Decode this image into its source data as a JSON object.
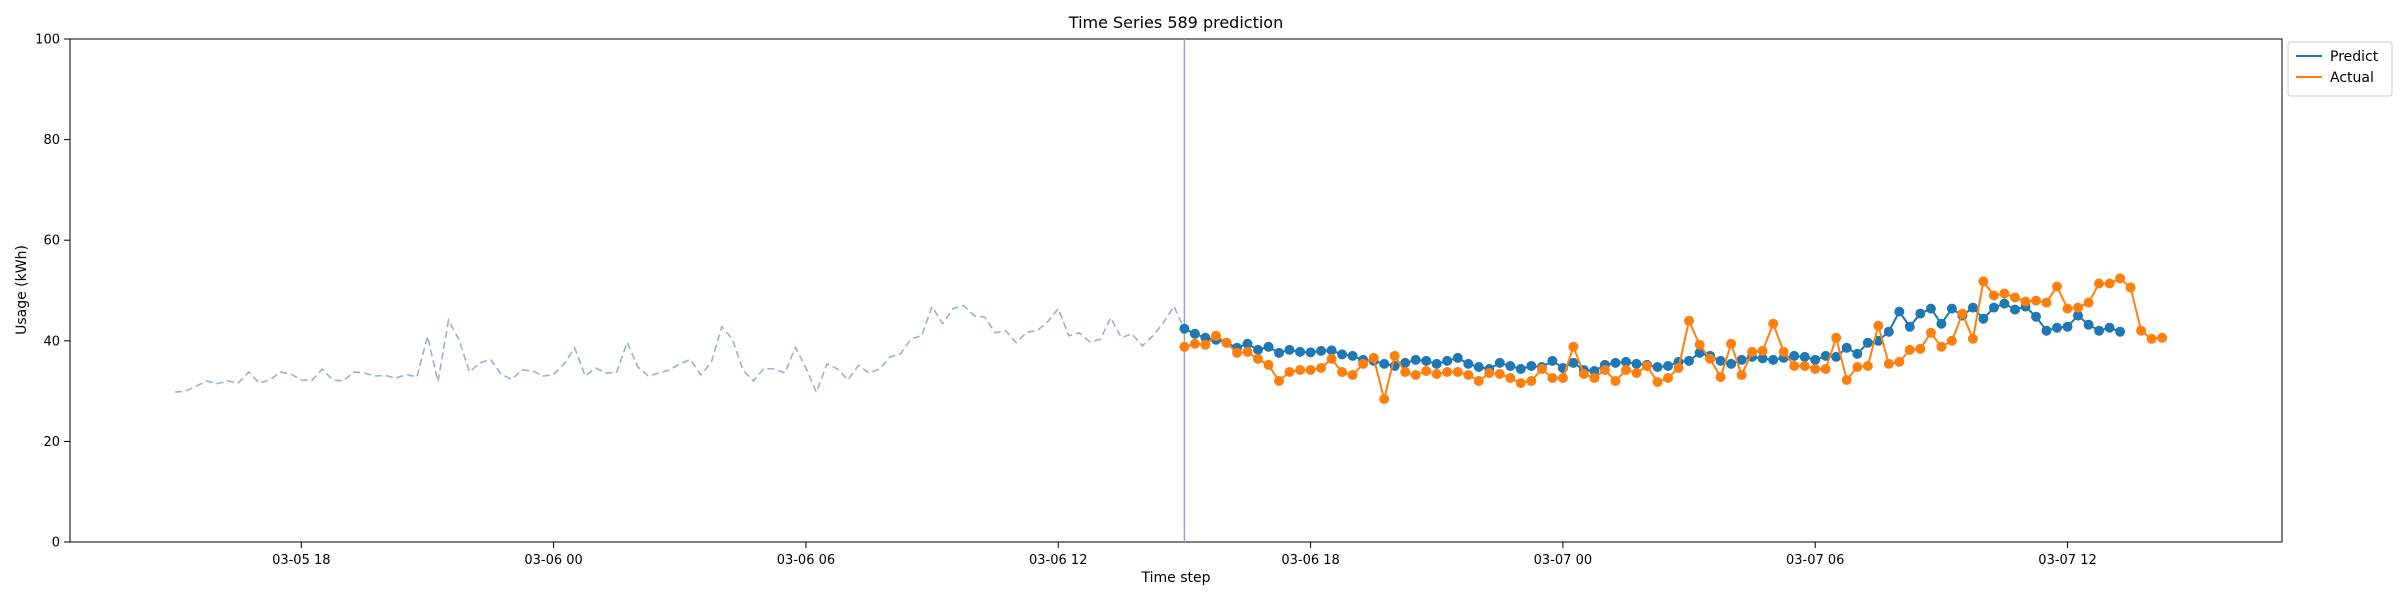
{
  "chart_data": {
    "type": "line",
    "title": "Time Series 589 prediction",
    "xlabel": "Time step",
    "ylabel": "Usage (kWh)",
    "ylim": [
      0,
      100
    ],
    "yticks": [
      "0",
      "20",
      "40",
      "60",
      "80",
      "100"
    ],
    "xlim_hours": [
      -11.5,
      41.1
    ],
    "xticks": [
      {
        "label": "03-05 18",
        "hour": -6
      },
      {
        "label": "03-06 00",
        "hour": 0
      },
      {
        "label": "03-06 06",
        "hour": 6
      },
      {
        "label": "03-06 12",
        "hour": 12
      },
      {
        "label": "03-06 18",
        "hour": 18
      },
      {
        "label": "03-07 00",
        "hour": 24
      },
      {
        "label": "03-07 06",
        "hour": 30
      },
      {
        "label": "03-07 12",
        "hour": 36
      }
    ],
    "history": {
      "start_hour": -9.0,
      "step_hours": 0.25,
      "values": [
        29.8,
        30.0,
        31.0,
        32.0,
        31.5,
        32.0,
        31.6,
        33.8,
        31.6,
        32.2,
        33.8,
        33.4,
        32.2,
        32.1,
        34.4,
        32.2,
        32.0,
        33.8,
        33.6,
        33.0,
        33.1,
        32.6,
        33.3,
        32.8,
        40.9,
        31.9,
        44.1,
        40.2,
        33.8,
        35.6,
        36.3,
        33.4,
        32.3,
        34.2,
        34.0,
        33.0,
        33.3,
        35.4,
        38.6,
        33.0,
        34.6,
        33.6,
        33.7,
        39.7,
        34.8,
        33.0,
        33.6,
        34.2,
        35.4,
        36.3,
        33.2,
        35.7,
        42.8,
        40.4,
        34.2,
        32.0,
        34.5,
        34.4,
        33.6,
        38.7,
        34.6,
        29.8,
        35.4,
        34.4,
        32.2,
        35.1,
        33.6,
        34.4,
        36.8,
        37.4,
        40.4,
        41.0,
        46.8,
        43.4,
        46.4,
        47.0,
        45.0,
        44.7,
        41.6,
        42.0,
        39.6,
        41.7,
        42.0,
        43.8,
        46.4,
        41.0,
        41.6,
        39.8,
        40.3,
        44.6,
        40.6,
        41.4,
        39.0,
        41.0,
        43.6,
        46.9,
        42.2
      ]
    },
    "forecast_start_hour": 15.0,
    "series": [
      {
        "name": "Predict",
        "color": "#1f77b4",
        "start_hour": 15.0,
        "step_hours": 0.25,
        "values": [
          42.4,
          41.4,
          40.6,
          40.2,
          39.6,
          38.6,
          39.4,
          38.2,
          38.8,
          37.6,
          38.2,
          37.8,
          37.7,
          38.0,
          38.1,
          37.3,
          37.0,
          36.2,
          36.0,
          35.4,
          35.0,
          35.6,
          36.2,
          36.0,
          35.4,
          36.0,
          36.6,
          35.4,
          34.8,
          34.4,
          35.6,
          35.0,
          34.4,
          35.0,
          34.8,
          36.0,
          34.6,
          35.6,
          34.2,
          34.0,
          35.2,
          35.6,
          35.8,
          35.4,
          35.2,
          34.8,
          35.0,
          35.8,
          36.0,
          37.6,
          37.0,
          36.0,
          35.4,
          36.2,
          36.8,
          36.5,
          36.2,
          36.6,
          37.0,
          36.8,
          36.2,
          37.0,
          36.8,
          38.6,
          37.4,
          39.6,
          40.0,
          41.8,
          45.8,
          42.8,
          45.4,
          46.4,
          43.4,
          46.4,
          45.0,
          46.6,
          44.4,
          46.6,
          47.4,
          46.2,
          46.8,
          44.8,
          42.0,
          42.6,
          42.8,
          45.0,
          43.2,
          42.0,
          42.6,
          41.8
        ]
      },
      {
        "name": "Actual",
        "color": "#ff7f0e",
        "start_hour": 15.0,
        "step_hours": 0.25,
        "values": [
          38.8,
          39.4,
          39.2,
          41.0,
          39.6,
          37.6,
          37.8,
          36.4,
          35.2,
          32.0,
          33.8,
          34.2,
          34.2,
          34.6,
          36.4,
          33.8,
          33.2,
          35.4,
          36.6,
          28.4,
          37.0,
          33.8,
          33.2,
          34.0,
          33.4,
          33.8,
          33.8,
          33.2,
          32.0,
          33.6,
          33.4,
          32.6,
          31.6,
          32.0,
          34.4,
          32.6,
          32.6,
          38.8,
          33.4,
          32.6,
          34.2,
          32.0,
          34.2,
          33.6,
          35.0,
          31.8,
          32.6,
          34.6,
          44.0,
          39.2,
          36.4,
          32.8,
          39.4,
          33.2,
          37.8,
          38.0,
          43.4,
          37.8,
          35.0,
          35.0,
          34.4,
          34.4,
          40.6,
          32.2,
          34.8,
          35.0,
          43.0,
          35.4,
          35.8,
          38.2,
          38.4,
          41.6,
          38.8,
          40.0,
          45.4,
          40.4,
          51.8,
          49.0,
          49.4,
          48.6,
          47.8,
          48.0,
          47.6,
          50.8,
          46.4,
          46.6,
          47.6,
          51.4,
          51.4,
          52.4,
          50.6,
          42.0,
          40.4,
          40.6
        ]
      }
    ],
    "legend": {
      "position": "top-right",
      "entries": [
        "Predict",
        "Actual"
      ]
    },
    "grid": false
  }
}
